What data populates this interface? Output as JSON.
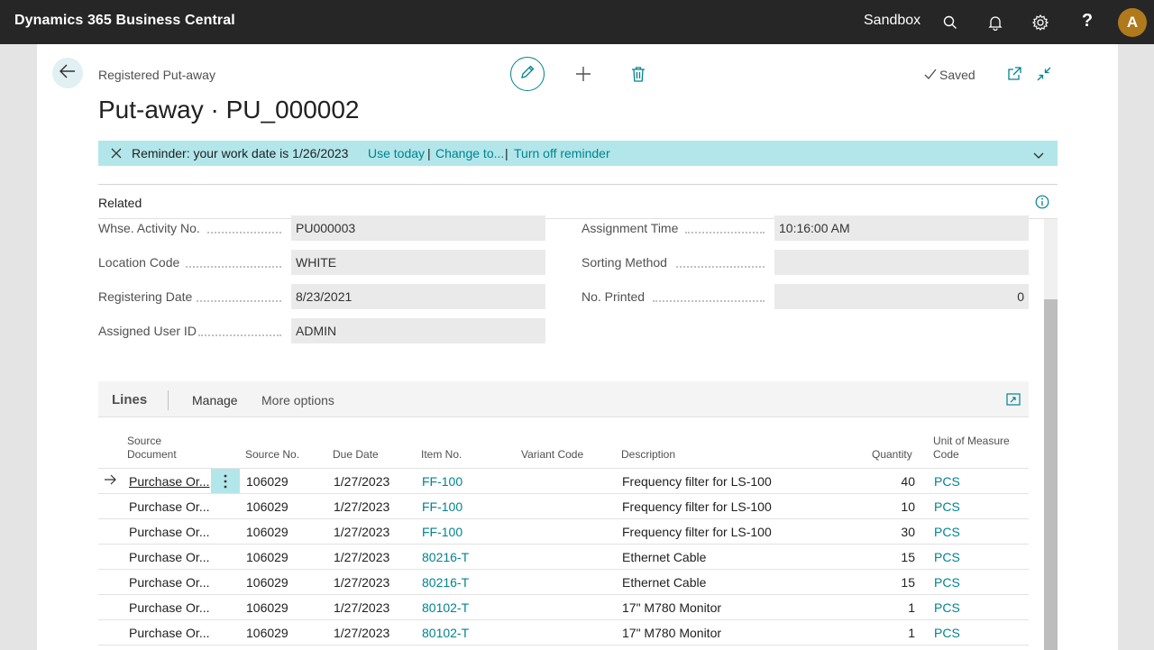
{
  "topbar": {
    "app_title": "Dynamics 365 Business Central",
    "environment": "Sandbox",
    "user_initial": "A"
  },
  "header": {
    "breadcrumb": "Registered Put-away",
    "title": "Put-away · PU_000002",
    "saved": "Saved"
  },
  "reminder": {
    "text": "Reminder: your work date is 1/26/2023",
    "use_today": "Use today",
    "change_to": "Change to...",
    "turn_off": "Turn off reminder",
    "separator": "|"
  },
  "related": {
    "label": "Related"
  },
  "fields": {
    "whse_activity_no": {
      "label": "Whse. Activity No.",
      "value": "PU000003"
    },
    "location_code": {
      "label": "Location Code",
      "value": "WHITE"
    },
    "registering_date": {
      "label": "Registering Date",
      "value": "8/23/2021"
    },
    "assigned_user_id": {
      "label": "Assigned User ID",
      "value": "ADMIN"
    },
    "assignment_time": {
      "label": "Assignment Time",
      "value": "10:16:00 AM"
    },
    "sorting_method": {
      "label": "Sorting Method",
      "value": ""
    },
    "no_printed": {
      "label": "No. Printed",
      "value": "0"
    }
  },
  "lines": {
    "title": "Lines",
    "manage": "Manage",
    "more": "More options",
    "columns": {
      "source_doc": "Source\nDocument",
      "source_no": "Source No.",
      "due_date": "Due Date",
      "item_no": "Item No.",
      "variant": "Variant Code",
      "description": "Description",
      "quantity": "Quantity",
      "uom": "Unit of Measure\nCode"
    },
    "rows": [
      {
        "source_doc": "Purchase Or...",
        "source_no": "106029",
        "due_date": "1/27/2023",
        "item_no": "FF-100",
        "variant": "",
        "description": "Frequency filter for LS-100",
        "quantity": "40",
        "uom": "PCS"
      },
      {
        "source_doc": "Purchase Or...",
        "source_no": "106029",
        "due_date": "1/27/2023",
        "item_no": "FF-100",
        "variant": "",
        "description": "Frequency filter for LS-100",
        "quantity": "10",
        "uom": "PCS"
      },
      {
        "source_doc": "Purchase Or...",
        "source_no": "106029",
        "due_date": "1/27/2023",
        "item_no": "FF-100",
        "variant": "",
        "description": "Frequency filter for LS-100",
        "quantity": "30",
        "uom": "PCS"
      },
      {
        "source_doc": "Purchase Or...",
        "source_no": "106029",
        "due_date": "1/27/2023",
        "item_no": "80216-T",
        "variant": "",
        "description": "Ethernet Cable",
        "quantity": "15",
        "uom": "PCS"
      },
      {
        "source_doc": "Purchase Or...",
        "source_no": "106029",
        "due_date": "1/27/2023",
        "item_no": "80216-T",
        "variant": "",
        "description": "Ethernet Cable",
        "quantity": "15",
        "uom": "PCS"
      },
      {
        "source_doc": "Purchase Or...",
        "source_no": "106029",
        "due_date": "1/27/2023",
        "item_no": "80102-T",
        "variant": "",
        "description": "17\" M780 Monitor",
        "quantity": "1",
        "uom": "PCS"
      },
      {
        "source_doc": "Purchase Or...",
        "source_no": "106029",
        "due_date": "1/27/2023",
        "item_no": "80102-T",
        "variant": "",
        "description": "17\" M780 Monitor",
        "quantity": "1",
        "uom": "PCS"
      }
    ]
  },
  "icons": [
    "search-icon",
    "bell-icon",
    "gear-icon",
    "help-icon",
    "back-arrow-icon",
    "pencil-icon",
    "plus-icon",
    "trash-icon",
    "check-icon",
    "open-new-window-icon",
    "collapse-icon",
    "close-icon",
    "chevron-down-icon",
    "info-icon",
    "expand-icon",
    "row-arrow-icon",
    "more-vertical-icon"
  ],
  "colors": {
    "topbar": "#262626",
    "accent": "#00838f",
    "reminder_bg": "#b2e6ea",
    "avatar": "#b0791c"
  }
}
